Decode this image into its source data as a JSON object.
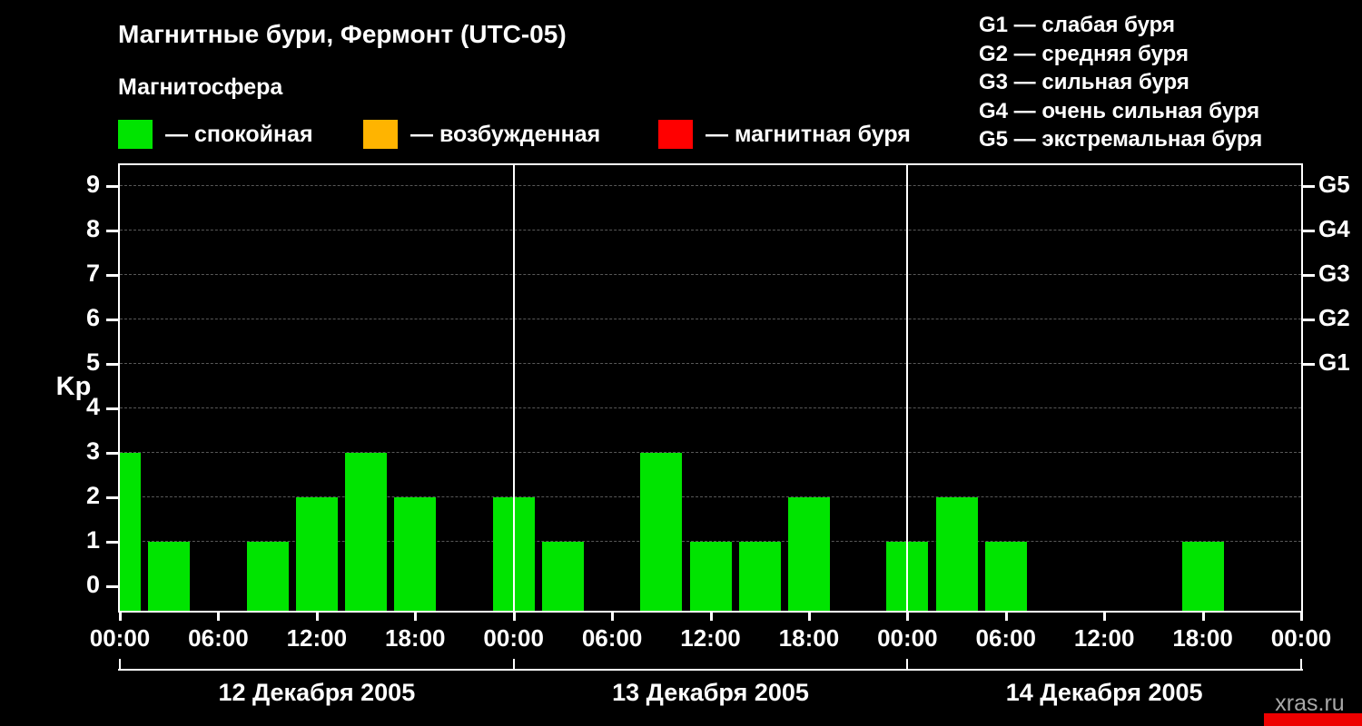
{
  "header": {
    "title": "Магнитные бури, Фермонт (UTC-05)",
    "subtitle": "Магнитосфера"
  },
  "legend": {
    "items": [
      {
        "label": "— спокойная",
        "color": "#00e400"
      },
      {
        "label": "— возбужденная",
        "color": "#ffb400"
      },
      {
        "label": "— магнитная буря",
        "color": "#ff0000"
      }
    ]
  },
  "storm_scale": {
    "items": [
      {
        "label": "G1 — слабая буря"
      },
      {
        "label": "G2 — средняя буря"
      },
      {
        "label": "G3 — сильная буря"
      },
      {
        "label": "G4 — очень сильная буря"
      },
      {
        "label": "G5 — экстремальная буря"
      }
    ]
  },
  "chart_data": {
    "type": "bar",
    "title": "Магнитные бури, Фермонт (UTC-05)",
    "ylabel": "Kp",
    "ylim": [
      0,
      9
    ],
    "yticks": [
      0,
      1,
      2,
      3,
      4,
      5,
      6,
      7,
      8,
      9
    ],
    "grid": "dashed-horizontal",
    "legend_position": "top",
    "bar_color": "#00e400",
    "x_axis_time_labels": [
      "00:00",
      "06:00",
      "12:00",
      "18:00",
      "00:00",
      "06:00",
      "12:00",
      "18:00",
      "00:00",
      "06:00",
      "12:00",
      "18:00",
      "00:00"
    ],
    "right_axis_ticks": [
      {
        "kp": 5,
        "label": "G1"
      },
      {
        "kp": 6,
        "label": "G2"
      },
      {
        "kp": 7,
        "label": "G3"
      },
      {
        "kp": 8,
        "label": "G4"
      },
      {
        "kp": 9,
        "label": "G5"
      }
    ],
    "slot_hours": [
      "00:00",
      "03:00",
      "06:00",
      "09:00",
      "12:00",
      "15:00",
      "18:00",
      "21:00"
    ],
    "days": [
      {
        "date": "12 Декабря 2005",
        "kp_values": [
          3,
          1,
          0,
          1,
          2,
          3,
          2,
          0
        ]
      },
      {
        "date": "13 Декабря 2005",
        "kp_values": [
          2,
          1,
          0,
          3,
          1,
          1,
          2,
          0
        ]
      },
      {
        "date": "14 Декабря 2005",
        "kp_values": [
          1,
          2,
          1,
          0,
          0,
          0,
          1,
          0
        ]
      }
    ]
  },
  "watermark": {
    "label": "xras.ru",
    "text_color": "#a8a8a8",
    "accent_color": "#ee0000"
  }
}
